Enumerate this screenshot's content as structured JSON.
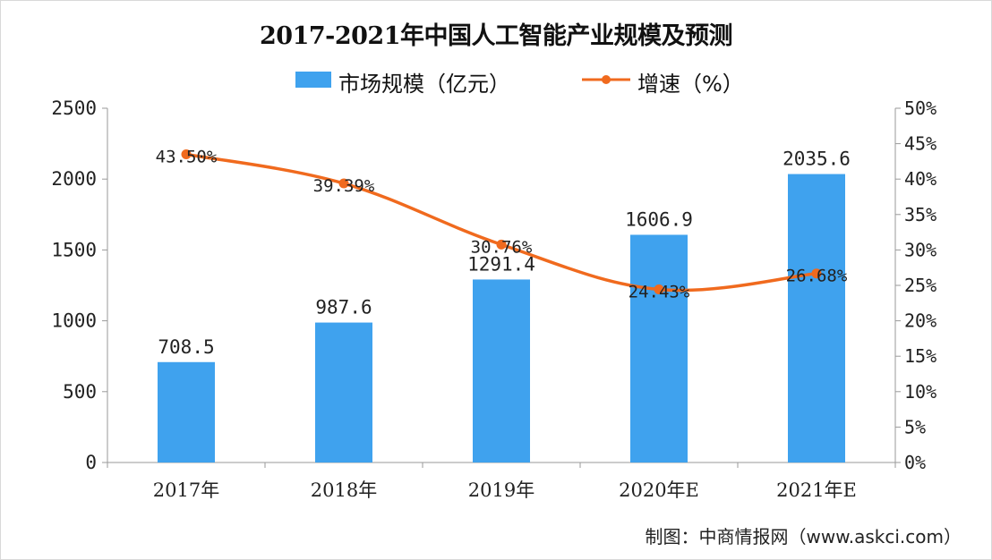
{
  "chart_data": {
    "type": "bar",
    "title": "2017-2021年中国人工智能产业规模及预测",
    "categories": [
      "2017年",
      "2018年",
      "2019年",
      "2020年E",
      "2021年E"
    ],
    "series": [
      {
        "name": "市场规模（亿元）",
        "type": "bar",
        "axis": "left",
        "values": [
          708.5,
          987.6,
          1291.4,
          1606.9,
          2035.6
        ],
        "labels": [
          "708.5",
          "987.6",
          "1291.4",
          "1606.9",
          "2035.6"
        ]
      },
      {
        "name": "增速（%）",
        "type": "line",
        "axis": "right",
        "values": [
          43.5,
          39.39,
          30.76,
          24.43,
          26.68
        ],
        "labels": [
          "43.50%",
          "39.39%",
          "30.76%",
          "24.43%",
          "26.68%"
        ]
      }
    ],
    "y_left": {
      "ylim": [
        0,
        2500
      ],
      "ticks": [
        0,
        500,
        1000,
        1500,
        2000,
        2500
      ],
      "tick_labels": [
        "0",
        "500",
        "1000",
        "1500",
        "2000",
        "2500"
      ]
    },
    "y_right": {
      "ylim": [
        0,
        50
      ],
      "ticks": [
        0,
        5,
        10,
        15,
        20,
        25,
        30,
        35,
        40,
        45,
        50
      ],
      "tick_labels": [
        "0%",
        "5%",
        "10%",
        "15%",
        "20%",
        "25%",
        "30%",
        "35%",
        "40%",
        "45%",
        "50%"
      ]
    },
    "grid": false,
    "legend": "top-center",
    "colors": {
      "bar": "#3fa2ee",
      "line": "#f06a1e"
    }
  },
  "source_note": "制图：中商情报网（www.askci.com）"
}
